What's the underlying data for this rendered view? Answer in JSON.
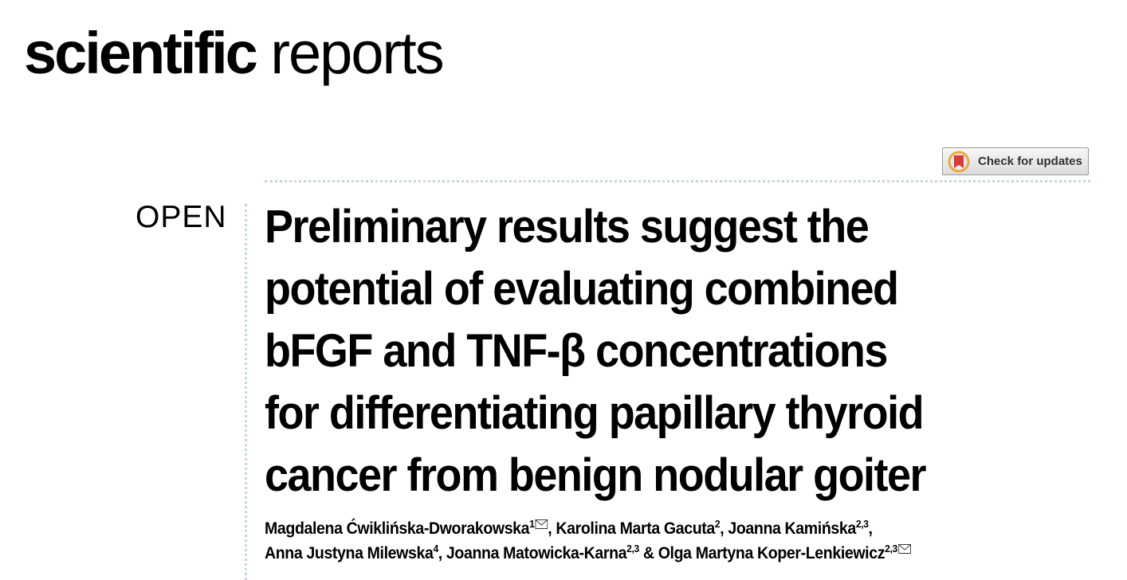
{
  "header": {
    "brand_bold": "scientific",
    "brand_light": "reports",
    "update_badge": "Check for updates"
  },
  "article": {
    "access_label": "OPEN",
    "title_lines": [
      "Preliminary results suggest the",
      "potential of evaluating combined",
      "bFGF and TNF-β concentrations",
      "for differentiating papillary thyroid",
      "cancer from benign nodular goiter"
    ],
    "author_lines": [
      [
        {
          "name": "Magdalena Ćwiklińska-Dworakowska",
          "sup": "1",
          "after": ", "
        },
        {
          "name": "Karolina Marta Gacuta",
          "sup": "2",
          "after": ", "
        },
        {
          "name": "Joanna Kamińska",
          "sup": "2,3",
          "after": ","
        }
      ],
      [
        {
          "name": "Anna Justyna Milewska",
          "sup": "4",
          "after": ", "
        },
        {
          "name": "Joanna Matowicka-Karna",
          "sup": "2,3",
          "after": " & "
        },
        {
          "name": "Olga Martyna Koper-Lenkiewicz",
          "sup": "2,3"
        }
      ]
    ]
  }
}
